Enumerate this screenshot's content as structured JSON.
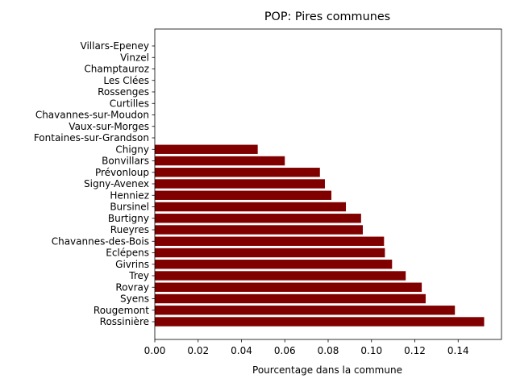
{
  "chart_data": {
    "type": "bar",
    "orientation": "horizontal",
    "title": "POP: Pires communes",
    "xlabel": "Pourcentage dans la commune",
    "ylabel": "",
    "xlim": [
      0,
      0.16
    ],
    "xticks": [
      "0.00",
      "0.02",
      "0.04",
      "0.06",
      "0.08",
      "0.10",
      "0.12",
      "0.14"
    ],
    "bar_color": "#800000",
    "grid": false,
    "categories": [
      "Rossinière",
      "Rougemont",
      "Syens",
      "Rovray",
      "Trey",
      "Givrins",
      "Eclépens",
      "Chavannes-des-Bois",
      "Rueyres",
      "Burtigny",
      "Bursinel",
      "Henniez",
      "Signy-Avenex",
      "Prévonloup",
      "Bonvillars",
      "Chigny",
      "Fontaines-sur-Grandson",
      "Vaux-sur-Morges",
      "Chavannes-sur-Moudon",
      "Curtilles",
      "Rossenges",
      "Les Clées",
      "Champtauroz",
      "Vinzel",
      "Villars-Epeney"
    ],
    "values": [
      0.152,
      0.1385,
      0.125,
      0.1232,
      0.1158,
      0.1095,
      0.1062,
      0.1058,
      0.096,
      0.0952,
      0.0882,
      0.0815,
      0.0785,
      0.0762,
      0.06,
      0.0475,
      0,
      0,
      0,
      0,
      0,
      0,
      0,
      0,
      0
    ]
  }
}
